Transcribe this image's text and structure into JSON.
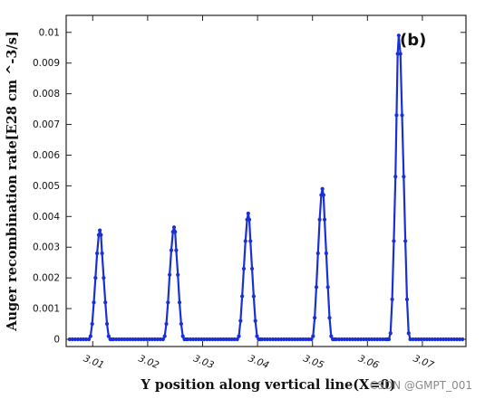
{
  "chart_data": {
    "type": "line",
    "panel_label": "(b)",
    "xlabel": "Y position along vertical line(X=0)",
    "ylabel": "Auger recombination rate[E28 cm ^-3/s]",
    "xlim": [
      3.0055,
      3.0776
    ],
    "ylim": [
      0,
      0.0102
    ],
    "x_ticks": [
      "3.01",
      "3.02",
      "3.03",
      "3.04",
      "3.05",
      "3.06",
      "3.07"
    ],
    "y_ticks": [
      "0",
      "0.001",
      "0.002",
      "0.003",
      "0.004",
      "0.005",
      "0.006",
      "0.007",
      "0.008",
      "0.009",
      "0.01"
    ],
    "grid": false,
    "color": "#1a2fd6",
    "series": [
      {
        "x": [
          3.0058,
          3.0063,
          3.0068,
          3.0073,
          3.0078,
          3.0083,
          3.0088,
          3.0093,
          3.0096,
          3.0099,
          3.0102,
          3.0105,
          3.0108,
          3.0111,
          3.0113,
          3.0115,
          3.0117,
          3.012,
          3.0123,
          3.0126,
          3.0129,
          3.0132,
          3.0135,
          3.0138,
          3.0143,
          3.0148,
          3.0153,
          3.0158,
          3.0163,
          3.0168,
          3.0173,
          3.0178,
          3.0183,
          3.0188,
          3.0193,
          3.0198,
          3.0203,
          3.0208,
          3.0213,
          3.0218,
          3.0223,
          3.0228,
          3.0231,
          3.0234,
          3.0237,
          3.024,
          3.0243,
          3.0246,
          3.0248,
          3.025,
          3.0252,
          3.0255,
          3.0258,
          3.0261,
          3.0264,
          3.0267,
          3.027,
          3.0273,
          3.0278,
          3.0283,
          3.0288,
          3.0293,
          3.0298,
          3.0303,
          3.0308,
          3.0313,
          3.0318,
          3.0323,
          3.0328,
          3.0333,
          3.0338,
          3.0343,
          3.0348,
          3.0353,
          3.0358,
          3.0363,
          3.0366,
          3.0369,
          3.0372,
          3.0375,
          3.0378,
          3.0381,
          3.0383,
          3.0385,
          3.0387,
          3.039,
          3.0393,
          3.0396,
          3.0399,
          3.0402,
          3.0405,
          3.0408,
          3.0413,
          3.0418,
          3.0423,
          3.0428,
          3.0433,
          3.0438,
          3.0443,
          3.0448,
          3.0453,
          3.0458,
          3.0463,
          3.0468,
          3.0473,
          3.0478,
          3.0483,
          3.0488,
          3.0493,
          3.0498,
          3.0501,
          3.0504,
          3.0507,
          3.051,
          3.0513,
          3.0516,
          3.0518,
          3.052,
          3.0522,
          3.0525,
          3.0528,
          3.0531,
          3.0534,
          3.0537,
          3.054,
          3.0543,
          3.0548,
          3.0553,
          3.0558,
          3.0563,
          3.0568,
          3.0573,
          3.0578,
          3.0583,
          3.0588,
          3.0593,
          3.0598,
          3.0603,
          3.0608,
          3.0613,
          3.0618,
          3.0623,
          3.0628,
          3.0633,
          3.0636,
          3.0639,
          3.0642,
          3.0645,
          3.0648,
          3.0651,
          3.0653,
          3.0655,
          3.0657,
          3.066,
          3.0663,
          3.0666,
          3.0669,
          3.0672,
          3.0675,
          3.0678,
          3.0683,
          3.0688,
          3.0693,
          3.0698,
          3.0703,
          3.0708,
          3.0713,
          3.0718,
          3.0723,
          3.0728,
          3.0733,
          3.0738,
          3.0743,
          3.0748,
          3.0753,
          3.0758,
          3.0763,
          3.0768,
          3.0773
        ],
        "y": [
          0,
          0,
          0,
          0,
          0,
          0,
          0,
          0,
          0.0001,
          0.0005,
          0.0012,
          0.002,
          0.0028,
          0.0034,
          0.00355,
          0.0034,
          0.0028,
          0.002,
          0.0012,
          0.0005,
          0.0001,
          0,
          0,
          0,
          0,
          0,
          0,
          0,
          0,
          0,
          0,
          0,
          0,
          0,
          0,
          0,
          0,
          0,
          0,
          0,
          0,
          0,
          0.0001,
          0.0005,
          0.0012,
          0.0021,
          0.0029,
          0.0035,
          0.00365,
          0.0035,
          0.0029,
          0.0021,
          0.0012,
          0.0005,
          0.0001,
          0,
          0,
          0,
          0,
          0,
          0,
          0,
          0,
          0,
          0,
          0,
          0,
          0,
          0,
          0,
          0,
          0,
          0,
          0,
          0,
          0,
          0.0001,
          0.0006,
          0.0014,
          0.0023,
          0.0032,
          0.0039,
          0.0041,
          0.0039,
          0.0032,
          0.0023,
          0.0014,
          0.0006,
          0.0001,
          0,
          0,
          0,
          0,
          0,
          0,
          0,
          0,
          0,
          0,
          0,
          0,
          0,
          0,
          0,
          0,
          0,
          0,
          0,
          0,
          0,
          0.0001,
          0.0007,
          0.0017,
          0.0028,
          0.0039,
          0.0047,
          0.0049,
          0.0047,
          0.0039,
          0.0028,
          0.0017,
          0.0007,
          0.0001,
          0,
          0,
          0,
          0,
          0,
          0,
          0,
          0,
          0,
          0,
          0,
          0,
          0,
          0,
          0,
          0,
          0,
          0,
          0,
          0,
          0,
          0,
          0,
          0.0002,
          0.0013,
          0.0032,
          0.0053,
          0.0073,
          0.0093,
          0.0099,
          0.0093,
          0.0073,
          0.0053,
          0.0032,
          0.0013,
          0.0002,
          0,
          0,
          0,
          0,
          0,
          0,
          0,
          0,
          0,
          0,
          0,
          0,
          0,
          0,
          0,
          0,
          0,
          0,
          0,
          0
        ]
      }
    ]
  },
  "watermark": "CSDN @GMPT_001"
}
